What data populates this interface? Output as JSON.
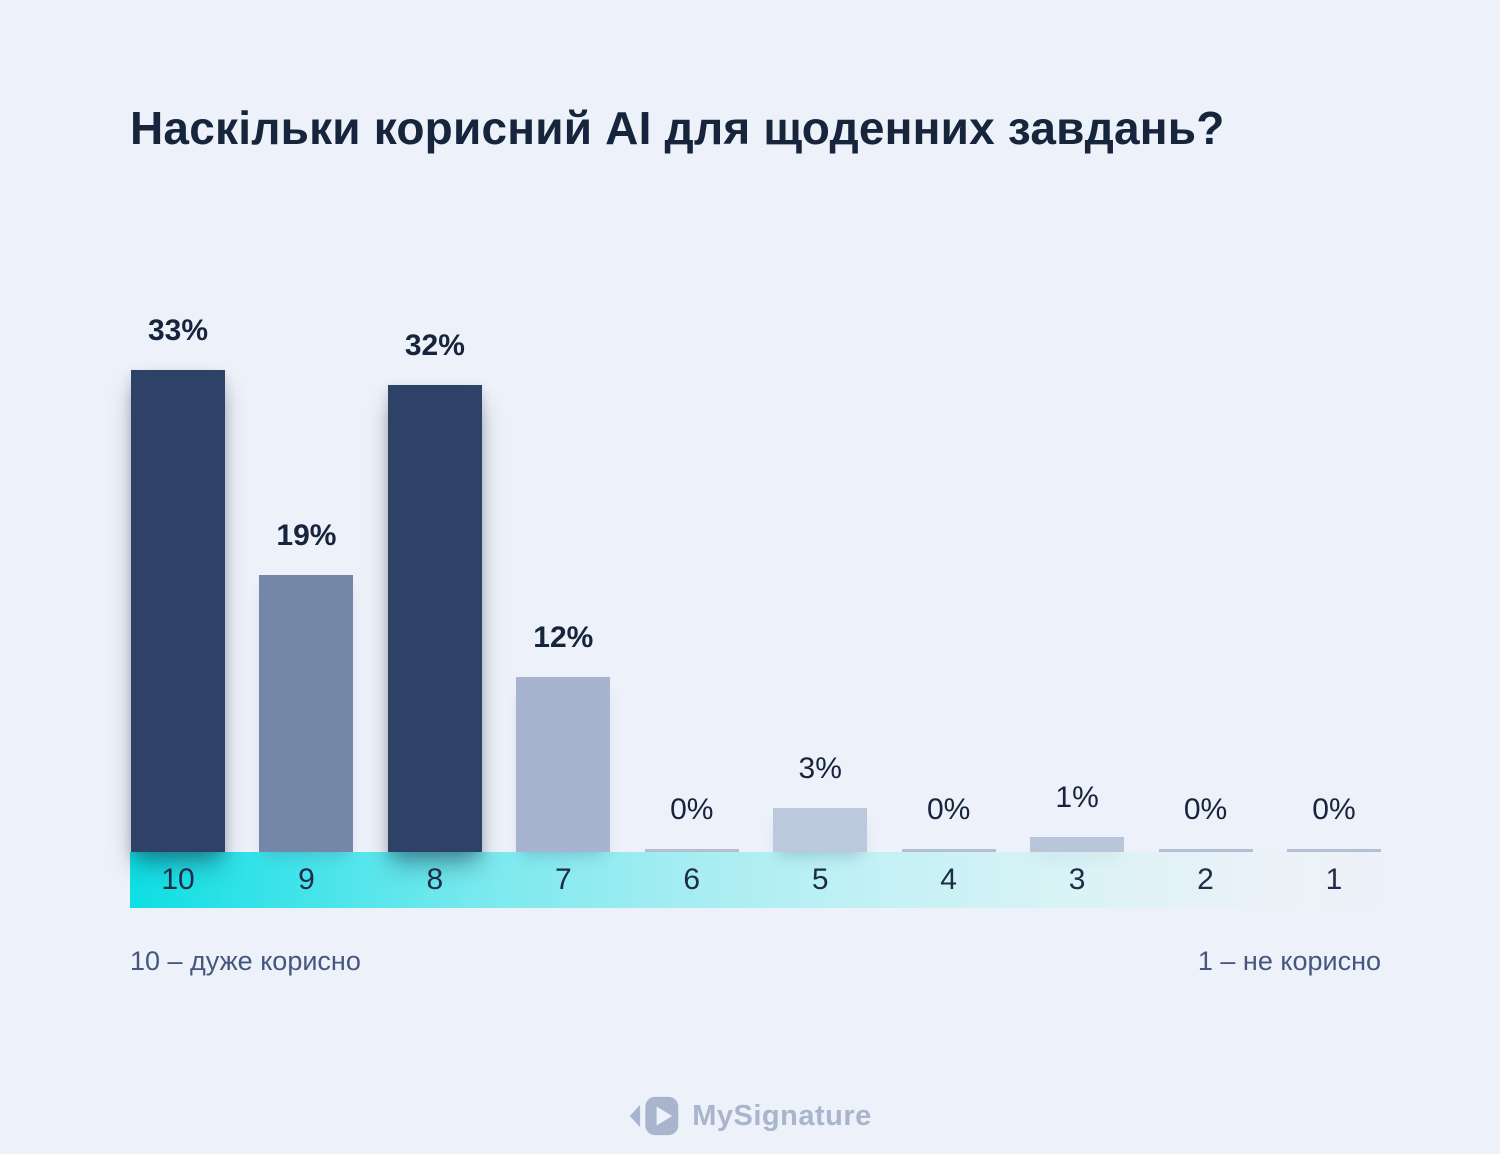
{
  "title": "Наскільки корисний AI для щоденних завдань?",
  "chart_data": {
    "type": "bar",
    "title": "Наскільки корисний AI для щоденних завдань?",
    "categories": [
      "10",
      "9",
      "8",
      "7",
      "6",
      "5",
      "4",
      "3",
      "2",
      "1"
    ],
    "values": [
      33,
      19,
      32,
      12,
      0,
      3,
      0,
      1,
      0,
      0
    ],
    "value_labels": [
      "33%",
      "19%",
      "32%",
      "12%",
      "0%",
      "3%",
      "0%",
      "1%",
      "0%",
      "0%"
    ],
    "label_bold": [
      true,
      true,
      true,
      true,
      false,
      false,
      false,
      false,
      false,
      false
    ],
    "bar_colors": [
      "#2e4166",
      "#7387a9",
      "#2e4166",
      "#a6b4cf",
      "#b4bfd3",
      "#bcc8db",
      "#b4bfd3",
      "#b9c5d8",
      "#b4bfd3",
      "#b4bfd3"
    ],
    "bar_emphasized": [
      true,
      false,
      true,
      false,
      false,
      false,
      false,
      false,
      false,
      false
    ],
    "xlabel": "",
    "ylabel": "",
    "ylim": [
      0,
      35
    ],
    "grid": "off",
    "legend_position": "below-axis",
    "legend_left": "10 – дуже корисно",
    "legend_right": "1 – не корисно",
    "axis_strip_gradient": [
      "#0ddfe3",
      "#a5edf2",
      "rgba(237,241,249,0)"
    ]
  },
  "footer": {
    "brand": "MySignature",
    "brand_color": "#a9b5cd"
  },
  "colors": {
    "background": "#edf1f9",
    "title_text": "#16243c",
    "axis_text": "#1d2c47",
    "legend_text": "#45577c"
  }
}
